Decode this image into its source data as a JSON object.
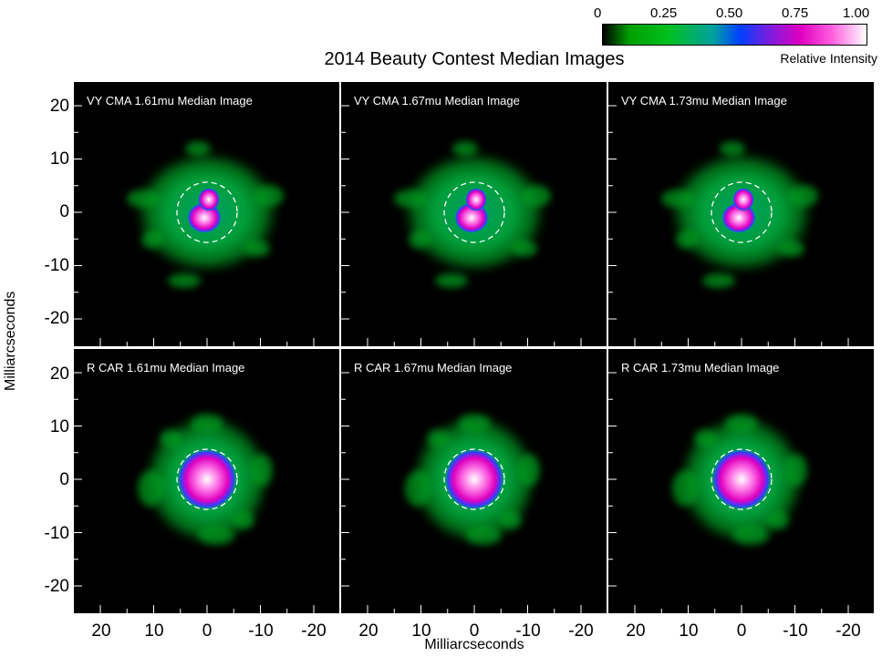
{
  "title": "2014 Beauty Contest Median Images",
  "colorbar": {
    "ticks": [
      "0",
      "0.25",
      "0.50",
      "0.75",
      "1.00"
    ],
    "label": "Relative Intensity",
    "colors": [
      "#000000",
      "#00a000",
      "#00a0a0",
      "#0040ff",
      "#e000c0",
      "#ffffff"
    ]
  },
  "x_axis_label": "Milliarcseconds",
  "y_axis_label": "Milliarcseconds",
  "y_ticks": [
    "20",
    "10",
    "0",
    "-10",
    "-20"
  ],
  "x_ticks": [
    "20",
    "10",
    "0",
    "-10",
    "-20"
  ],
  "panels": [
    {
      "title": "VY CMA 1.61mu Median Image",
      "object": "VY CMA"
    },
    {
      "title": "VY CMA 1.67mu Median Image",
      "object": "VY CMA"
    },
    {
      "title": "VY CMA 1.73mu Median Image",
      "object": "VY CMA"
    },
    {
      "title": "R CAR 1.61mu Median Image",
      "object": "R CAR"
    },
    {
      "title": "R CAR 1.67mu Median Image",
      "object": "R CAR"
    },
    {
      "title": "R CAR 1.73mu Median Image",
      "object": "R CAR"
    }
  ]
}
